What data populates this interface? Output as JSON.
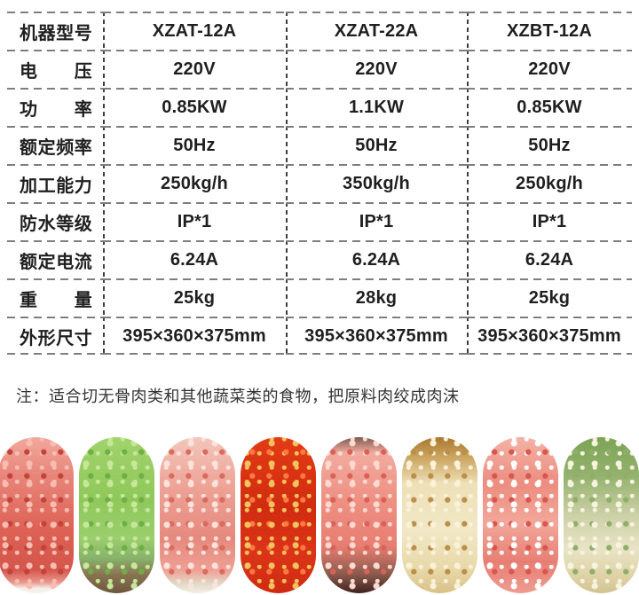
{
  "table": {
    "rows": [
      {
        "label": "机器型号",
        "values": [
          "XZAT-12A",
          "XZAT-22A",
          "XZBT-12A"
        ]
      },
      {
        "label": "电压",
        "values": [
          "220V",
          "220V",
          "220V"
        ]
      },
      {
        "label": "功率",
        "values": [
          "0.85KW",
          "1.1KW",
          "0.85KW"
        ]
      },
      {
        "label": "额定频率",
        "values": [
          "50Hz",
          "50Hz",
          "50Hz"
        ]
      },
      {
        "label": "加工能力",
        "values": [
          "250kg/h",
          "350kg/h",
          "250kg/h"
        ]
      },
      {
        "label": "防水等级",
        "values": [
          "IP*1",
          "IP*1",
          "IP*1"
        ]
      },
      {
        "label": "额定电流",
        "values": [
          "6.24A",
          "6.24A",
          "6.24A"
        ]
      },
      {
        "label": "重量",
        "values": [
          "25kg",
          "28kg",
          "25kg"
        ]
      },
      {
        "label": "外形尺寸",
        "values": [
          "395×360×375mm",
          "395×360×375mm",
          "395×360×375mm"
        ]
      }
    ]
  },
  "note": "注：适合切无骨肉类和其他蔬菜类的食物，把原料肉绞成肉沫",
  "colors": {
    "text": "#1f1f1f",
    "note_text": "#333333",
    "table_line_horizontal": "#7e7e7e",
    "table_line_vertical": "#3f3f3f",
    "background": "#ffffff"
  },
  "food_images": [
    {
      "name": "minced-red-meat",
      "gradient": [
        [
          "#f2a89c",
          0
        ],
        [
          "#e8857a",
          25
        ],
        [
          "#dd6154",
          60
        ],
        [
          "#d5564c",
          85
        ],
        [
          "#e9978d",
          93
        ],
        [
          "#f5f1ea",
          97
        ]
      ],
      "speckles": [
        "#f7bdb2",
        "#c3423a"
      ]
    },
    {
      "name": "chopped-celery",
      "gradient": [
        [
          "#a2d36d",
          0
        ],
        [
          "#8fc85a",
          40
        ],
        [
          "#9bce6e",
          65
        ],
        [
          "#87b16a",
          78
        ],
        [
          "#8a7351",
          88
        ],
        [
          "#6e573f",
          100
        ]
      ],
      "speckles": [
        "#c6e89a",
        "#6fae45"
      ]
    },
    {
      "name": "minced-shrimp-meat",
      "gradient": [
        [
          "#f3c6bb",
          0
        ],
        [
          "#eda093",
          35
        ],
        [
          "#e6897e",
          65
        ],
        [
          "#ef9f94",
          85
        ],
        [
          "#e2d9c8",
          94
        ],
        [
          "#f2efe6",
          100
        ]
      ],
      "speckles": [
        "#fbe3dc",
        "#d96a60"
      ]
    },
    {
      "name": "chopped-red-chili",
      "gradient": [
        [
          "#e23b16",
          0
        ],
        [
          "#d22c10",
          45
        ],
        [
          "#db3418",
          75
        ],
        [
          "#cf2a12",
          100
        ]
      ],
      "speckles": [
        "#f2c35e",
        "#ff7a42"
      ]
    },
    {
      "name": "minced-pork-in-pan",
      "gradient": [
        [
          "#7c5a50",
          0
        ],
        [
          "#f2ab9f",
          10
        ],
        [
          "#ee9184",
          40
        ],
        [
          "#e87d71",
          70
        ],
        [
          "#8a5a4c",
          88
        ],
        [
          "#40221d",
          100
        ]
      ],
      "speckles": [
        "#fcd9d1",
        "#d96258"
      ]
    },
    {
      "name": "minced-garlic-pickle",
      "gradient": [
        [
          "#a9772f",
          0
        ],
        [
          "#caa25c",
          12
        ],
        [
          "#eee0b8",
          30
        ],
        [
          "#f2e8c6",
          60
        ],
        [
          "#e8d8a8",
          85
        ],
        [
          "#d9c188",
          100
        ]
      ],
      "speckles": [
        "#f9f2d9",
        "#b98f4a"
      ]
    },
    {
      "name": "minced-pork-fat",
      "gradient": [
        [
          "#f3b2a6",
          0
        ],
        [
          "#ec8d80",
          30
        ],
        [
          "#f2a79a",
          55
        ],
        [
          "#e87e73",
          80
        ],
        [
          "#ef9c90",
          100
        ]
      ],
      "speckles": [
        "#ffffff",
        "#d8564e"
      ]
    },
    {
      "name": "chopped-onion-celery",
      "gradient": [
        [
          "#7ba355",
          0
        ],
        [
          "#94b26e",
          25
        ],
        [
          "#ccd0a6",
          50
        ],
        [
          "#e9e4c6",
          72
        ],
        [
          "#ded1a4",
          90
        ],
        [
          "#d2c392",
          100
        ]
      ],
      "speckles": [
        "#f6f3de",
        "#8fae68"
      ]
    }
  ]
}
